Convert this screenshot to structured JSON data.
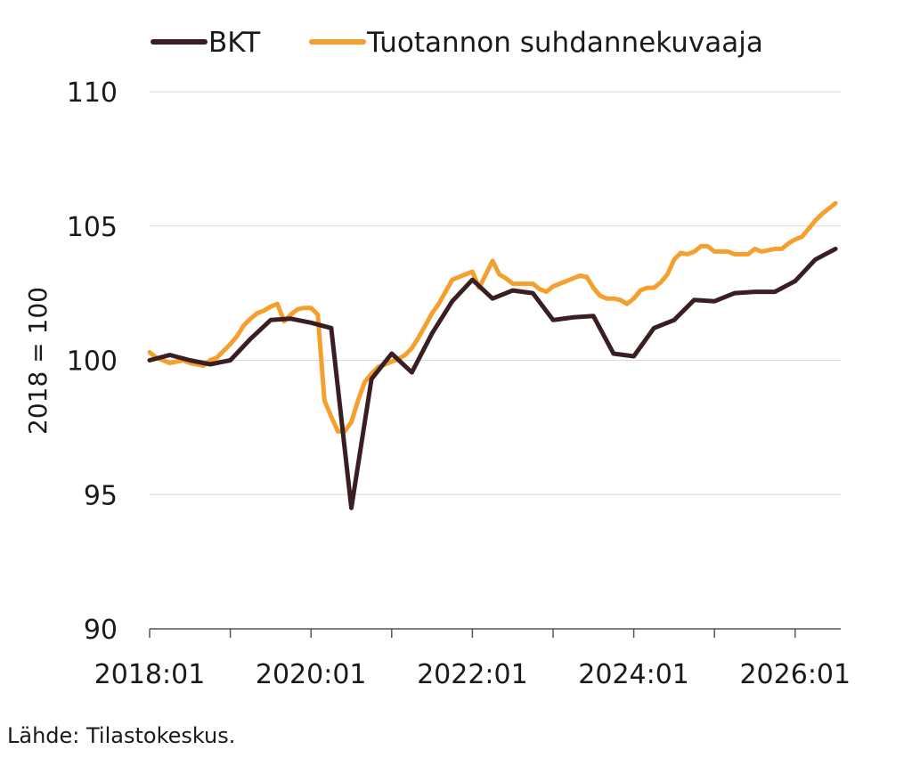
{
  "chart_data": {
    "type": "line",
    "title": "",
    "ylabel": "2018 = 100",
    "xlabel": "",
    "ylim": [
      90,
      110
    ],
    "xlim": [
      "2018:01",
      "2026:07"
    ],
    "y_ticks": [
      110,
      105,
      100,
      95,
      90
    ],
    "x_tick_labels": [
      "2018:01",
      "2020:01",
      "2022:01",
      "2024:01",
      "2026:01"
    ],
    "grid": "horizontal",
    "legend_placement": "top",
    "series": [
      {
        "name": "BKT",
        "color": "#3a1f22",
        "points": [
          [
            "2018:01",
            100.0
          ],
          [
            "2018:04",
            100.2
          ],
          [
            "2018:07",
            100.0
          ],
          [
            "2018:10",
            99.85
          ],
          [
            "2019:01",
            100.0
          ],
          [
            "2019:04",
            100.8
          ],
          [
            "2019:07",
            101.5
          ],
          [
            "2019:10",
            101.55
          ],
          [
            "2020:01",
            101.4
          ],
          [
            "2020:04",
            101.2
          ],
          [
            "2020:07",
            94.5
          ],
          [
            "2020:10",
            99.3
          ],
          [
            "2021:01",
            100.25
          ],
          [
            "2021:04",
            99.55
          ],
          [
            "2021:07",
            101.0
          ],
          [
            "2021:10",
            102.2
          ],
          [
            "2022:01",
            103.0
          ],
          [
            "2022:04",
            102.3
          ],
          [
            "2022:07",
            102.6
          ],
          [
            "2022:10",
            102.5
          ],
          [
            "2023:01",
            101.5
          ],
          [
            "2023:04",
            101.6
          ],
          [
            "2023:07",
            101.65
          ],
          [
            "2023:10",
            100.25
          ],
          [
            "2024:01",
            100.15
          ],
          [
            "2024:04",
            101.2
          ],
          [
            "2024:07",
            101.5
          ],
          [
            "2024:10",
            102.25
          ],
          [
            "2025:01",
            102.2
          ],
          [
            "2025:04",
            102.5
          ],
          [
            "2025:07",
            102.55
          ],
          [
            "2025:10",
            102.55
          ],
          [
            "2026:01",
            102.95
          ],
          [
            "2026:04",
            103.75
          ],
          [
            "2026:07",
            104.15
          ]
        ]
      },
      {
        "name": "Tuotannon suhdannekuvaaja",
        "color": "#f5a02e",
        "points": [
          [
            "2018:01",
            100.3
          ],
          [
            "2018:02",
            100.1
          ],
          [
            "2018:03",
            100.0
          ],
          [
            "2018:04",
            99.9
          ],
          [
            "2018:05",
            99.95
          ],
          [
            "2018:06",
            100.0
          ],
          [
            "2018:07",
            99.9
          ],
          [
            "2018:08",
            99.85
          ],
          [
            "2018:09",
            99.8
          ],
          [
            "2018:10",
            100.0
          ],
          [
            "2018:11",
            100.1
          ],
          [
            "2018:12",
            100.35
          ],
          [
            "2019:01",
            100.6
          ],
          [
            "2019:02",
            100.9
          ],
          [
            "2019:03",
            101.3
          ],
          [
            "2019:04",
            101.55
          ],
          [
            "2019:05",
            101.75
          ],
          [
            "2019:06",
            101.85
          ],
          [
            "2019:07",
            102.0
          ],
          [
            "2019:08",
            102.1
          ],
          [
            "2019:09",
            101.45
          ],
          [
            "2019:10",
            101.7
          ],
          [
            "2019:11",
            101.9
          ],
          [
            "2019:12",
            101.95
          ],
          [
            "2020:01",
            101.95
          ],
          [
            "2020:02",
            101.7
          ],
          [
            "2020:03",
            98.5
          ],
          [
            "2020:04",
            97.9
          ],
          [
            "2020:05",
            97.35
          ],
          [
            "2020:06",
            97.35
          ],
          [
            "2020:07",
            97.7
          ],
          [
            "2020:08",
            98.5
          ],
          [
            "2020:09",
            99.2
          ],
          [
            "2020:10",
            99.5
          ],
          [
            "2020:11",
            99.75
          ],
          [
            "2020:12",
            99.85
          ],
          [
            "2021:01",
            99.95
          ],
          [
            "2021:02",
            100.05
          ],
          [
            "2021:03",
            100.2
          ],
          [
            "2021:04",
            100.45
          ],
          [
            "2021:05",
            100.85
          ],
          [
            "2021:06",
            101.3
          ],
          [
            "2021:07",
            101.75
          ],
          [
            "2021:08",
            102.1
          ],
          [
            "2021:09",
            102.55
          ],
          [
            "2021:10",
            103.0
          ],
          [
            "2021:11",
            103.1
          ],
          [
            "2021:12",
            103.2
          ],
          [
            "2022:01",
            103.3
          ],
          [
            "2022:02",
            102.7
          ],
          [
            "2022:03",
            103.2
          ],
          [
            "2022:04",
            103.7
          ],
          [
            "2022:05",
            103.2
          ],
          [
            "2022:06",
            103.05
          ],
          [
            "2022:07",
            102.85
          ],
          [
            "2022:08",
            102.85
          ],
          [
            "2022:09",
            102.85
          ],
          [
            "2022:10",
            102.85
          ],
          [
            "2022:11",
            102.65
          ],
          [
            "2022:12",
            102.55
          ],
          [
            "2023:01",
            102.75
          ],
          [
            "2023:02",
            102.85
          ],
          [
            "2023:03",
            102.95
          ],
          [
            "2023:04",
            103.05
          ],
          [
            "2023:05",
            103.15
          ],
          [
            "2023:06",
            103.1
          ],
          [
            "2023:07",
            102.7
          ],
          [
            "2023:08",
            102.4
          ],
          [
            "2023:09",
            102.3
          ],
          [
            "2023:10",
            102.3
          ],
          [
            "2023:11",
            102.25
          ],
          [
            "2023:12",
            102.1
          ],
          [
            "2024:01",
            102.3
          ],
          [
            "2024:02",
            102.6
          ],
          [
            "2024:03",
            102.7
          ],
          [
            "2024:04",
            102.7
          ],
          [
            "2024:05",
            102.9
          ],
          [
            "2024:06",
            103.2
          ],
          [
            "2024:07",
            103.75
          ],
          [
            "2024:08",
            104.0
          ],
          [
            "2024:09",
            103.95
          ],
          [
            "2024:10",
            104.05
          ],
          [
            "2024:11",
            104.25
          ],
          [
            "2024:12",
            104.25
          ],
          [
            "2025:01",
            104.05
          ],
          [
            "2025:02",
            104.05
          ],
          [
            "2025:03",
            104.05
          ],
          [
            "2025:04",
            103.95
          ],
          [
            "2025:05",
            103.95
          ],
          [
            "2025:06",
            103.95
          ],
          [
            "2025:07",
            104.15
          ],
          [
            "2025:08",
            104.05
          ],
          [
            "2025:09",
            104.1
          ],
          [
            "2025:10",
            104.15
          ],
          [
            "2025:11",
            104.15
          ],
          [
            "2025:12",
            104.35
          ],
          [
            "2026:01",
            104.5
          ],
          [
            "2026:02",
            104.6
          ],
          [
            "2026:03",
            104.9
          ],
          [
            "2026:04",
            105.2
          ],
          [
            "2026:05",
            105.45
          ],
          [
            "2026:06",
            105.65
          ],
          [
            "2026:07",
            105.85
          ]
        ]
      }
    ]
  },
  "source": "Lähde: Tilastokeskus."
}
